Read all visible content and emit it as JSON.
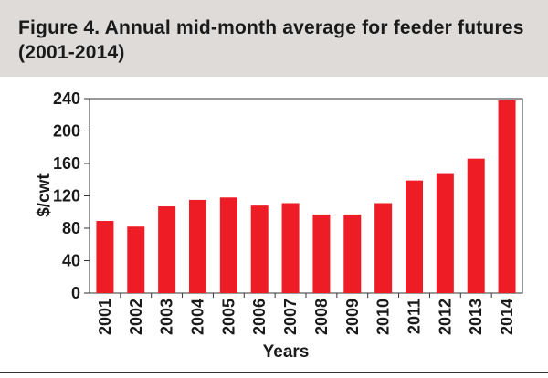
{
  "figure": {
    "title_line1": "Figure 4. Annual mid-month average for feeder futures",
    "title_line2": "(2001-2014)"
  },
  "colors": {
    "header_background": "#dedbd8",
    "bar_fill": "#ee1c25",
    "axis": "#333333"
  },
  "chart_data": {
    "type": "bar",
    "title": "Figure 4. Annual mid-month average for feeder futures (2001-2014)",
    "xlabel": "Years",
    "ylabel": "$/cwt",
    "categories": [
      "2001",
      "2002",
      "2003",
      "2004",
      "2005",
      "2006",
      "2007",
      "2008",
      "2009",
      "2010",
      "2011",
      "2012",
      "2013",
      "2014"
    ],
    "values": [
      89,
      82,
      107,
      115,
      118,
      108,
      111,
      97,
      97,
      111,
      139,
      147,
      166,
      238
    ],
    "ylim": [
      0,
      240
    ],
    "yticks": [
      0,
      40,
      80,
      120,
      160,
      200,
      240
    ],
    "grid": false,
    "legend": "none"
  }
}
